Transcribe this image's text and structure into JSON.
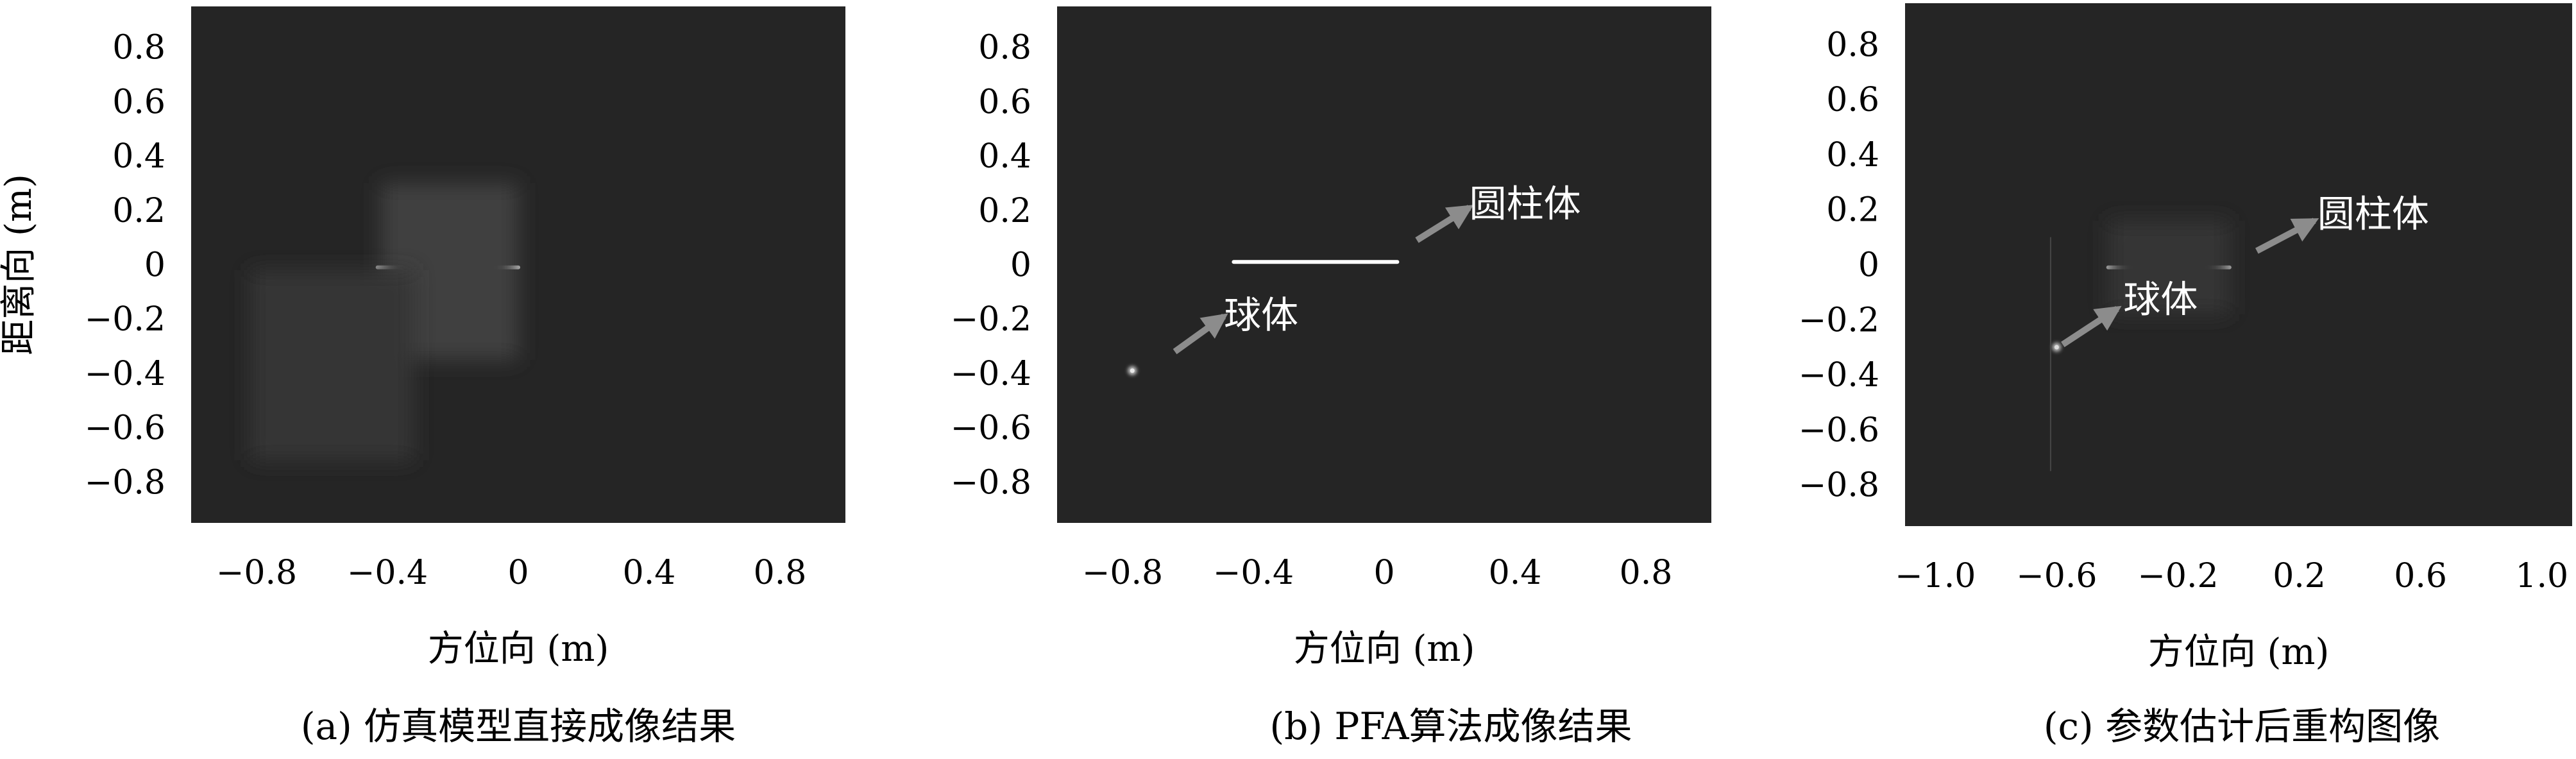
{
  "colors": {
    "image_background": "#252525",
    "arrow": "#8c8c8c",
    "annotation_text": "#ffffff"
  },
  "chart_data": [
    {
      "type": "heatmap",
      "caption": "(a) 仿真模型直接成像结果",
      "xlabel": "方位向 (m)",
      "ylabel": "距离向 (m)",
      "xticks": [
        {
          "value": -0.8,
          "label": "−0.8"
        },
        {
          "value": -0.4,
          "label": "−0.4"
        },
        {
          "value": 0,
          "label": "0"
        },
        {
          "value": 0.4,
          "label": "0.4"
        },
        {
          "value": 0.8,
          "label": "0.8"
        }
      ],
      "yticks": [
        {
          "value": 0.8,
          "label": "0.8"
        },
        {
          "value": 0.6,
          "label": "0.6"
        },
        {
          "value": 0.4,
          "label": "0.4"
        },
        {
          "value": 0.2,
          "label": "0.2"
        },
        {
          "value": 0,
          "label": "0"
        },
        {
          "value": -0.2,
          "label": "−0.2"
        },
        {
          "value": -0.4,
          "label": "−0.4"
        },
        {
          "value": -0.6,
          "label": "−0.6"
        },
        {
          "value": -0.8,
          "label": "−0.8"
        }
      ],
      "xlim": [
        -1.0,
        1.0
      ],
      "ylim": [
        -0.95,
        0.95
      ],
      "features": [
        {
          "kind": "line",
          "x": [
            -0.43,
            0.0
          ],
          "y": -0.01,
          "intensity": 0.95
        },
        {
          "kind": "haze",
          "x": [
            -0.42,
            0.0
          ],
          "y": [
            -0.35,
            0.3
          ],
          "intensity": 0.12
        },
        {
          "kind": "haze",
          "x": [
            -0.82,
            -0.32
          ],
          "y": [
            -0.72,
            -0.02
          ],
          "intensity": 0.07
        }
      ],
      "annotations": []
    },
    {
      "type": "heatmap",
      "caption": "(b) PFA算法成像结果",
      "xlabel": "方位向 (m)",
      "ylabel": "",
      "xticks": [
        {
          "value": -0.8,
          "label": "−0.8"
        },
        {
          "value": -0.4,
          "label": "−0.4"
        },
        {
          "value": 0,
          "label": "0"
        },
        {
          "value": 0.4,
          "label": "0.4"
        },
        {
          "value": 0.8,
          "label": "0.8"
        }
      ],
      "yticks": [
        {
          "value": 0.8,
          "label": "0.8"
        },
        {
          "value": 0.6,
          "label": "0.6"
        },
        {
          "value": 0.4,
          "label": "0.4"
        },
        {
          "value": 0.2,
          "label": "0.2"
        },
        {
          "value": 0,
          "label": "0"
        },
        {
          "value": -0.2,
          "label": "−0.2"
        },
        {
          "value": -0.4,
          "label": "−0.4"
        },
        {
          "value": -0.6,
          "label": "−0.6"
        },
        {
          "value": -0.8,
          "label": "−0.8"
        }
      ],
      "xlim": [
        -1.0,
        1.0
      ],
      "ylim": [
        -0.95,
        0.95
      ],
      "features": [
        {
          "kind": "line",
          "x": [
            -0.46,
            0.04
          ],
          "y": 0.01,
          "intensity": 1.0
        },
        {
          "kind": "point",
          "x": -0.77,
          "y": -0.39,
          "intensity": 0.9
        }
      ],
      "annotations": [
        {
          "text": "圆柱体",
          "arrow_from": [
            0.1,
            0.09
          ],
          "arrow_to": [
            0.26,
            0.21
          ],
          "text_at": [
            0.26,
            0.22
          ]
        },
        {
          "text": "球体",
          "arrow_from": [
            -0.64,
            -0.32
          ],
          "arrow_to": [
            -0.49,
            -0.19
          ],
          "text_at": [
            -0.49,
            -0.19
          ]
        }
      ]
    },
    {
      "type": "heatmap",
      "caption": "(c) 参数估计后重构图像",
      "xlabel": "方位向 (m)",
      "ylabel": "",
      "xticks": [
        {
          "value": -1.0,
          "label": "−1.0"
        },
        {
          "value": -0.6,
          "label": "−0.6"
        },
        {
          "value": -0.2,
          "label": "−0.2"
        },
        {
          "value": 0.2,
          "label": "0.2"
        },
        {
          "value": 0.6,
          "label": "0.6"
        },
        {
          "value": 1.0,
          "label": "1.0"
        }
      ],
      "yticks": [
        {
          "value": 0.8,
          "label": "0.8"
        },
        {
          "value": 0.6,
          "label": "0.6"
        },
        {
          "value": 0.4,
          "label": "0.4"
        },
        {
          "value": 0.2,
          "label": "0.2"
        },
        {
          "value": 0,
          "label": "0"
        },
        {
          "value": -0.2,
          "label": "−0.2"
        },
        {
          "value": -0.4,
          "label": "−0.4"
        },
        {
          "value": -0.6,
          "label": "−0.6"
        },
        {
          "value": -0.8,
          "label": "−0.8"
        }
      ],
      "xlim": [
        -1.1,
        1.1
      ],
      "ylim": [
        -0.95,
        0.95
      ],
      "features": [
        {
          "kind": "line",
          "x": [
            -0.43,
            -0.03
          ],
          "y": -0.01,
          "intensity": 0.9
        },
        {
          "kind": "haze",
          "x": [
            -0.43,
            -0.03
          ],
          "y": [
            -0.18,
            0.16
          ],
          "intensity": 0.08
        },
        {
          "kind": "point",
          "x": -0.6,
          "y": -0.3,
          "intensity": 0.85
        },
        {
          "kind": "vline",
          "x": -0.62,
          "y": [
            -0.75,
            0.1
          ],
          "intensity": 0.15
        }
      ],
      "annotations": [
        {
          "text": "圆柱体",
          "arrow_from": [
            0.06,
            0.05
          ],
          "arrow_to": [
            0.25,
            0.16
          ],
          "text_at": [
            0.26,
            0.18
          ]
        },
        {
          "text": "球体",
          "arrow_from": [
            -0.58,
            -0.29
          ],
          "arrow_to": [
            -0.4,
            -0.16
          ],
          "text_at": [
            -0.38,
            -0.13
          ]
        }
      ]
    }
  ]
}
